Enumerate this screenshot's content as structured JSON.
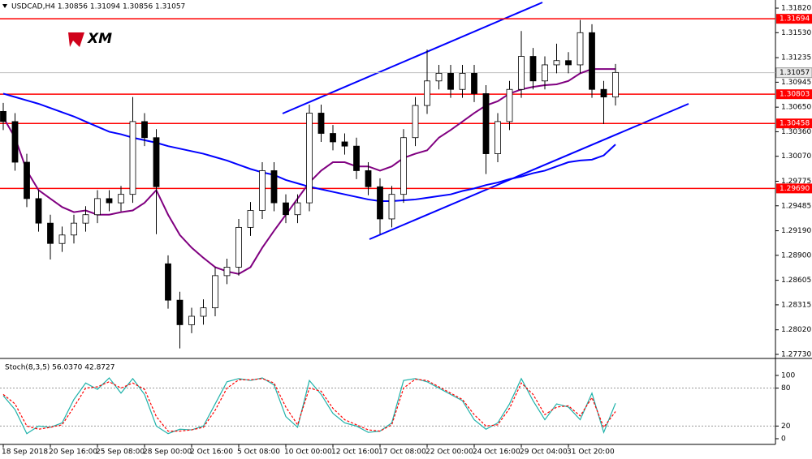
{
  "logo": "XM",
  "chart_data": [
    {
      "type": "candlestick",
      "title": "USDCAD,H4  1.30856 1.31094 1.30856 1.31057",
      "categories": [
        "18 Sep 2018",
        null,
        null,
        null,
        "20 Sep 16:00",
        null,
        null,
        null,
        "25 Sep 08:00",
        null,
        null,
        null,
        "28 Sep 00:00",
        null,
        null,
        null,
        "2 Oct 16:00",
        null,
        null,
        null,
        "5 Oct 08:00",
        null,
        null,
        null,
        "10 Oct 00:00",
        null,
        null,
        null,
        "12 Oct 16:00",
        null,
        null,
        null,
        "17 Oct 08:00",
        null,
        null,
        null,
        "22 Oct 00:00",
        null,
        null,
        null,
        "24 Oct 16:00",
        null,
        null,
        null,
        "29 Oct 04:00",
        null,
        null,
        null,
        "31 Oct 20:00",
        null,
        null,
        null,
        null
      ],
      "open": [
        1.306,
        1.3048,
        1.3,
        1.2957,
        1.2928,
        1.2904,
        1.2914,
        1.2928,
        1.2938,
        1.2957,
        1.2952,
        1.2962,
        1.3048,
        1.3029,
        1.288,
        1.2837,
        1.2808,
        1.2818,
        1.2828,
        1.2866,
        1.2876,
        1.2923,
        1.2943,
        1.299,
        1.2952,
        1.2938,
        1.2952,
        1.3058,
        1.3034,
        1.3024,
        1.3019,
        1.299,
        1.2971,
        1.2933,
        1.2962,
        1.3029,
        1.3067,
        1.3096,
        1.3105,
        1.3086,
        1.3105,
        1.3081,
        1.301,
        1.3048,
        1.3086,
        1.3125,
        1.3096,
        1.3115,
        1.312,
        1.3115,
        1.3153,
        1.3086,
        1.3077
      ],
      "high": [
        1.307,
        1.3058,
        1.301,
        1.2967,
        1.2938,
        1.2924,
        1.2938,
        1.2948,
        1.2967,
        1.2967,
        1.2972,
        1.3077,
        1.3058,
        1.3039,
        1.289,
        1.2847,
        1.2828,
        1.2838,
        1.2876,
        1.2886,
        1.2933,
        1.2953,
        1.3,
        1.3,
        1.2962,
        1.2962,
        1.3068,
        1.3068,
        1.3044,
        1.3034,
        1.3029,
        1.3,
        1.2981,
        1.2972,
        1.3039,
        1.3077,
        1.3133,
        1.3115,
        1.3115,
        1.3115,
        1.3115,
        1.3091,
        1.3058,
        1.3096,
        1.3155,
        1.3135,
        1.3125,
        1.314,
        1.313,
        1.3168,
        1.3163,
        1.3096,
        1.3116
      ],
      "low": [
        1.3038,
        1.299,
        1.2947,
        1.2918,
        1.2885,
        1.2894,
        1.2904,
        1.2918,
        1.2928,
        1.2942,
        1.2942,
        1.2952,
        1.3019,
        1.2915,
        1.2827,
        1.278,
        1.2798,
        1.2808,
        1.2818,
        1.2856,
        1.2866,
        1.2913,
        1.2933,
        1.2942,
        1.2928,
        1.2928,
        1.2942,
        1.3024,
        1.3014,
        1.3009,
        1.298,
        1.2961,
        1.2915,
        1.2923,
        1.2952,
        1.3019,
        1.3057,
        1.3086,
        1.3076,
        1.3076,
        1.3071,
        1.2986,
        1.3,
        1.3038,
        1.3076,
        1.3086,
        1.3086,
        1.3105,
        1.3105,
        1.3105,
        1.3076,
        1.3045,
        1.3067
      ],
      "close": [
        1.3048,
        1.3,
        1.2957,
        1.2928,
        1.2904,
        1.2914,
        1.2928,
        1.2938,
        1.2957,
        1.2952,
        1.2962,
        1.3048,
        1.3029,
        1.2971,
        1.2837,
        1.2808,
        1.2818,
        1.2828,
        1.2866,
        1.2876,
        1.2923,
        1.2943,
        1.299,
        1.2952,
        1.2938,
        1.2952,
        1.3058,
        1.3034,
        1.3024,
        1.3019,
        1.299,
        1.2971,
        1.2933,
        1.2962,
        1.3029,
        1.3067,
        1.3096,
        1.3105,
        1.3086,
        1.3105,
        1.3081,
        1.301,
        1.3048,
        1.3086,
        1.3125,
        1.3096,
        1.3115,
        1.312,
        1.3115,
        1.3153,
        1.3086,
        1.3077,
        1.3106
      ],
      "overlays": [
        {
          "color": "#800080",
          "values": [
            1.3053,
            1.3029,
            1.299,
            1.2967,
            1.2957,
            1.2947,
            1.2941,
            1.2943,
            1.2938,
            1.2938,
            1.2941,
            1.2943,
            1.2952,
            1.2967,
            1.2938,
            1.2914,
            1.2899,
            1.2887,
            1.2876,
            1.2871,
            1.2868,
            1.2876,
            1.2899,
            1.2919,
            1.2938,
            1.2957,
            1.2976,
            1.299,
            1.3,
            1.3,
            1.2995,
            1.2995,
            1.299,
            1.2995,
            1.3005,
            1.301,
            1.3014,
            1.3029,
            1.3038,
            1.3048,
            1.3058,
            1.3067,
            1.3072,
            1.3081,
            1.3086,
            1.3089,
            1.3091,
            1.3092,
            1.3096,
            1.3105,
            1.311,
            1.311,
            1.311
          ]
        },
        {
          "color": "#0000ff",
          "values": [
            1.3081,
            1.3077,
            1.3073,
            1.3069,
            1.3064,
            1.3059,
            1.3054,
            1.3048,
            1.3042,
            1.3036,
            1.3033,
            1.3029,
            1.3026,
            1.3023,
            1.3019,
            1.3016,
            1.3013,
            1.301,
            1.3006,
            1.3002,
            1.2997,
            1.2992,
            1.2988,
            1.2985,
            1.2979,
            1.2975,
            1.2971,
            1.2968,
            1.2965,
            1.2962,
            1.2959,
            1.2956,
            1.2954,
            1.2954,
            1.2955,
            1.2956,
            1.2958,
            1.296,
            1.2962,
            1.2966,
            1.2969,
            1.2973,
            1.2976,
            1.298,
            1.2983,
            1.2987,
            1.299,
            1.2995,
            1.3,
            1.3002,
            1.3003,
            1.3008,
            1.3021
          ]
        }
      ],
      "bull_color": "#ffffff",
      "bear_color": "#000000",
      "levels": [
        {
          "value": 1.31694,
          "label": "1.31694"
        },
        {
          "value": 1.30803,
          "label": "1.30803"
        },
        {
          "value": 1.30458,
          "label": "1.30458"
        },
        {
          "value": 1.2969,
          "label": "1.29690"
        }
      ],
      "level_color": "#ff0000",
      "last_price": {
        "value": 1.31057,
        "label": "1.31057"
      },
      "ylim": [
        1.27701,
        1.31916
      ],
      "yticks": [
        {
          "value": 1.3182,
          "label": "1.31820"
        },
        {
          "value": 1.3153,
          "label": "1.31530"
        },
        {
          "value": 1.31235,
          "label": "1.31235"
        },
        {
          "value": 1.30945,
          "label": "1.30945"
        },
        {
          "value": 1.3065,
          "label": "1.30650"
        },
        {
          "value": 1.3036,
          "label": "1.30360"
        },
        {
          "value": 1.3007,
          "label": "1.30070"
        },
        {
          "value": 1.29775,
          "label": "1.29775"
        },
        {
          "value": 1.29485,
          "label": "1.29485"
        },
        {
          "value": 1.2919,
          "label": "1.29190"
        },
        {
          "value": 1.289,
          "label": "1.28900"
        },
        {
          "value": 1.28605,
          "label": "1.28605"
        },
        {
          "value": 1.28315,
          "label": "1.28315"
        },
        {
          "value": 1.2802,
          "label": "1.28020"
        },
        {
          "value": 1.2773,
          "label": "1.27730"
        }
      ]
    },
    {
      "type": "line",
      "title": "Stoch(8,3,5) 56.0370 42.8727",
      "series": [
        {
          "color": "#20b2aa",
          "values": [
            68,
            46,
            8,
            20,
            18,
            25,
            62,
            88,
            78,
            96,
            72,
            95,
            70,
            20,
            8,
            15,
            14,
            20,
            55,
            90,
            95,
            92,
            96,
            85,
            35,
            18,
            92,
            70,
            40,
            25,
            20,
            10,
            12,
            25,
            92,
            95,
            90,
            80,
            70,
            60,
            30,
            15,
            25,
            55,
            95,
            60,
            30,
            55,
            50,
            30,
            72,
            10,
            56.037
          ]
        },
        {
          "color": "#ff0000",
          "dashed": true,
          "values": [
            70,
            55,
            20,
            15,
            18,
            22,
            50,
            80,
            82,
            90,
            80,
            88,
            78,
            35,
            12,
            12,
            14,
            18,
            45,
            80,
            93,
            93,
            95,
            88,
            50,
            22,
            80,
            75,
            48,
            30,
            22,
            14,
            12,
            22,
            80,
            94,
            92,
            82,
            72,
            62,
            38,
            20,
            22,
            48,
            88,
            70,
            38,
            50,
            52,
            36,
            65,
            18,
            42.8727
          ]
        }
      ],
      "levels": [
        20,
        80
      ],
      "ylim": [
        -9,
        123
      ],
      "yticks": [
        0,
        20,
        80,
        100
      ]
    }
  ]
}
